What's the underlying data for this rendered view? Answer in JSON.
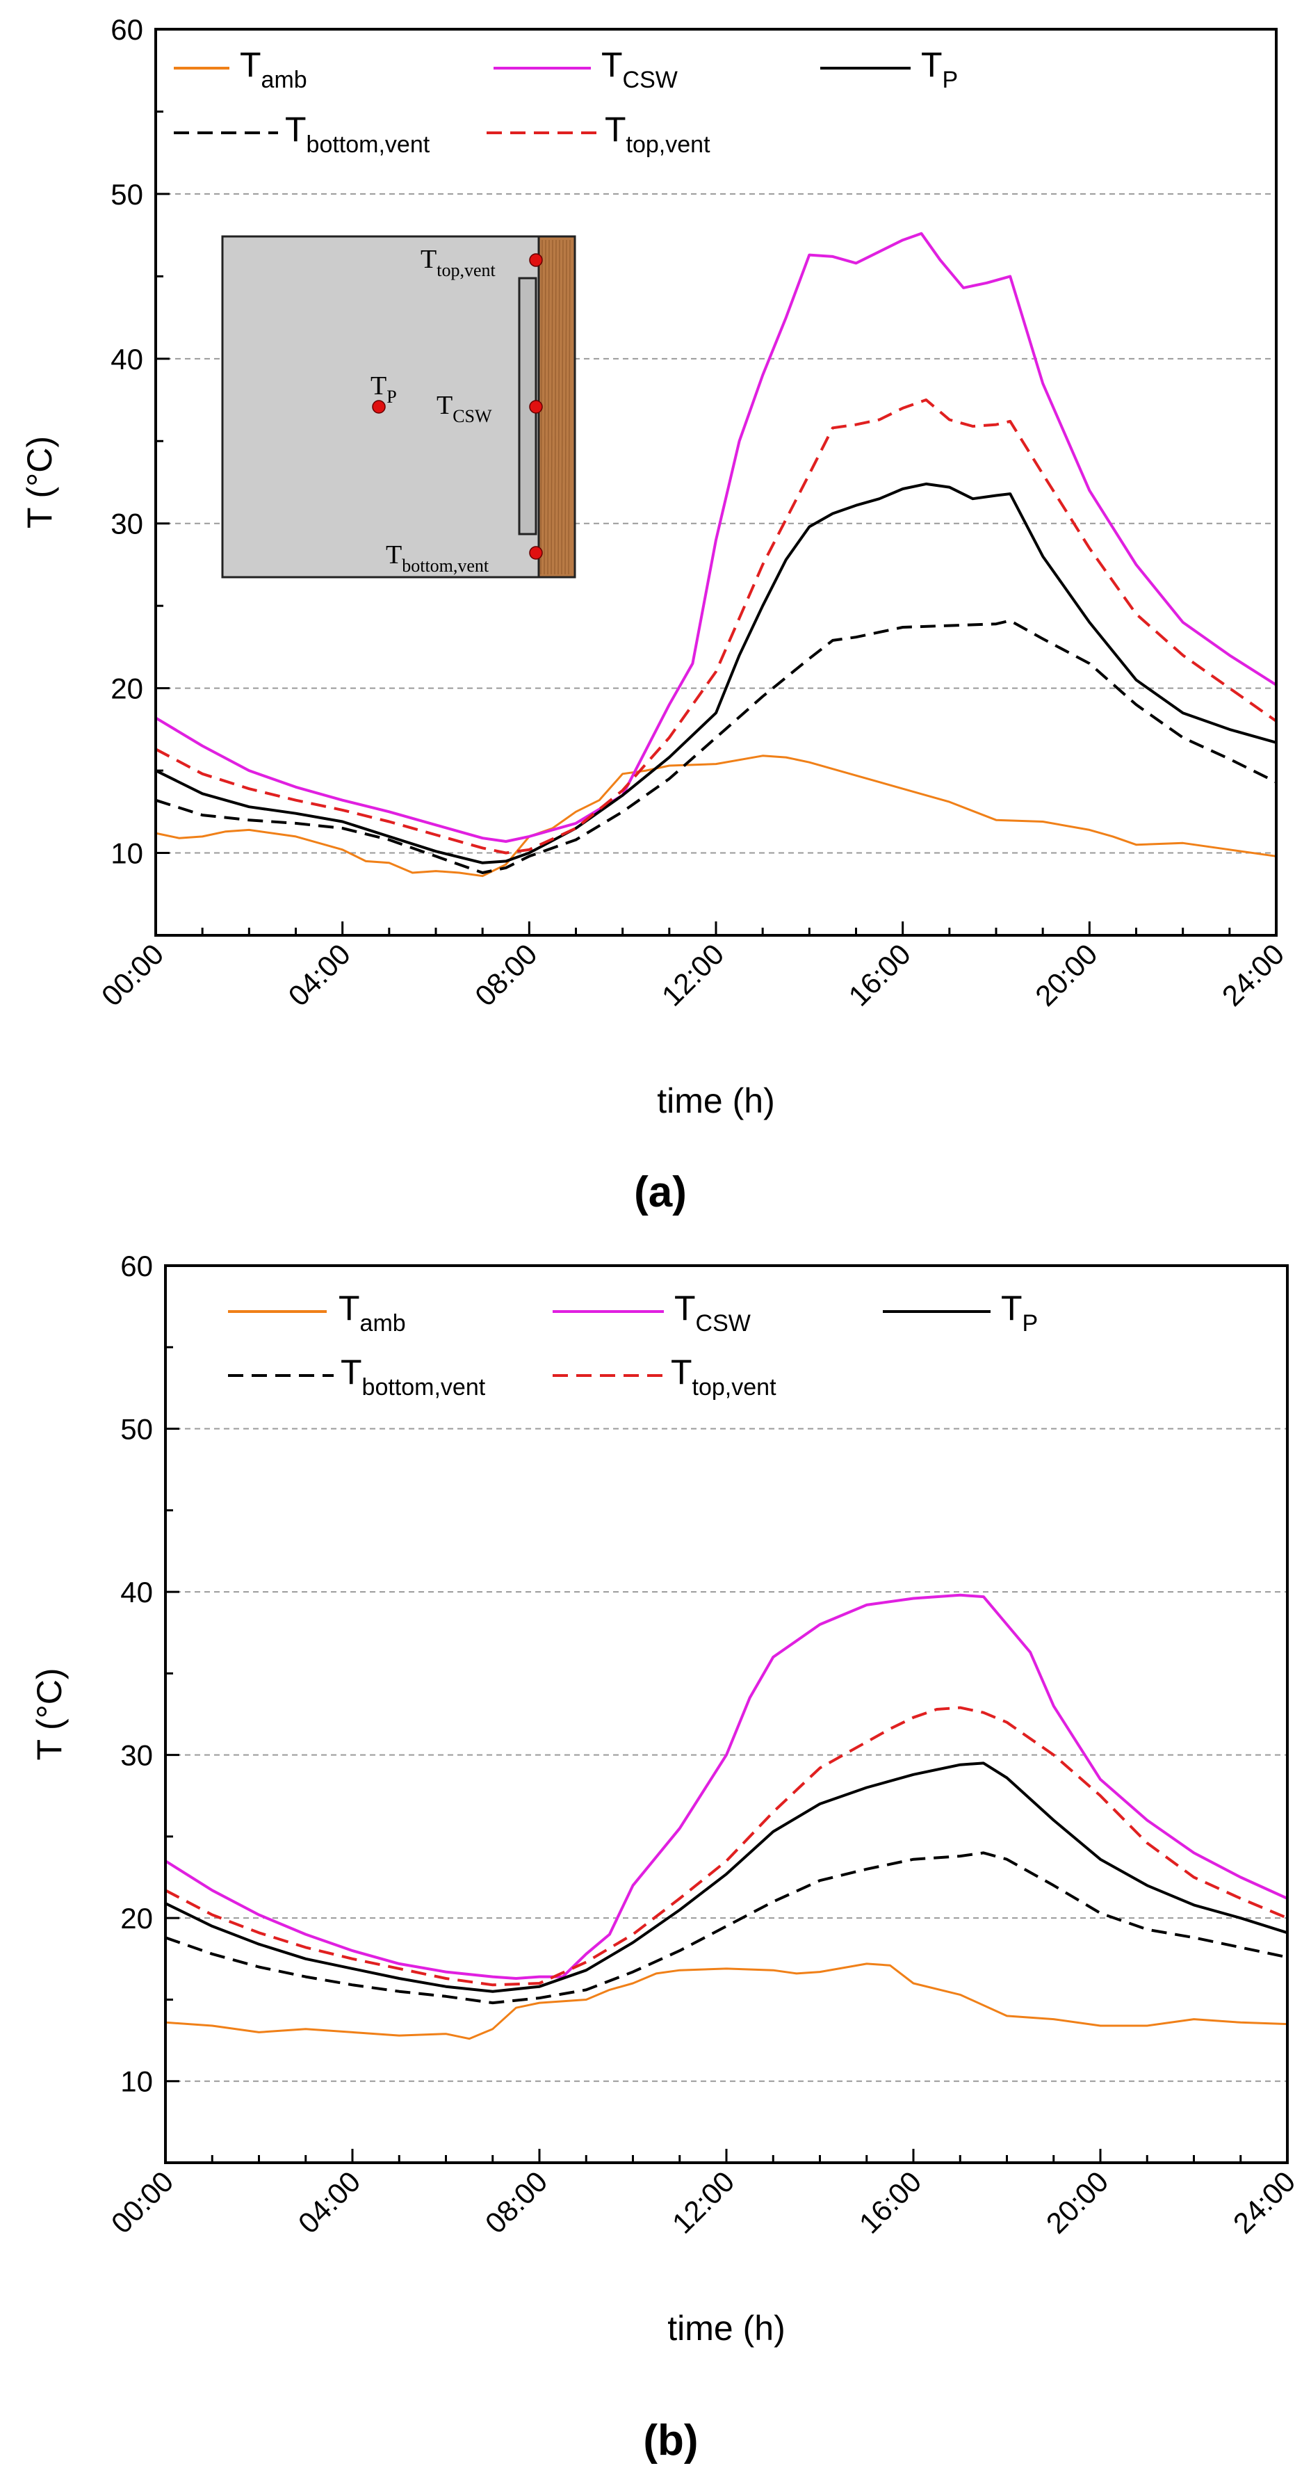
{
  "chart_data": [
    {
      "type": "line",
      "panel_label": "(a)",
      "xlabel": "time (h)",
      "ylabel": "T (°C)",
      "xlim": [
        0,
        24
      ],
      "ylim": [
        5,
        60
      ],
      "xticks": [
        "00:00",
        "04:00",
        "08:00",
        "12:00",
        "16:00",
        "20:00",
        "24:00"
      ],
      "yticks": [
        "10",
        "20",
        "30",
        "40",
        "50",
        "60"
      ],
      "grid": "horizontal dashed at 10, 20, 30, 40, 50",
      "legend": [
        {
          "series": "amb",
          "base": "T",
          "sub": "amb"
        },
        {
          "series": "csw",
          "base": "T",
          "sub": "CSW"
        },
        {
          "series": "p",
          "base": "T",
          "sub": "P"
        },
        {
          "series": "bottom",
          "base": "T",
          "sub": "bottom,vent"
        },
        {
          "series": "top",
          "base": "T",
          "sub": "top,vent"
        }
      ],
      "series": [
        {
          "id": "amb",
          "name": "T_amb",
          "color": "#F08018",
          "style": "solid",
          "x": [
            0,
            0.5,
            1,
            1.5,
            2,
            3,
            4,
            4.5,
            5,
            5.5,
            6,
            6.5,
            7,
            7.5,
            8,
            8.5,
            9,
            9.5,
            10,
            10.5,
            11,
            12,
            13,
            13.5,
            14,
            15,
            16,
            17,
            18,
            19,
            20,
            20.5,
            21,
            22,
            23,
            24
          ],
          "y": [
            11.2,
            10.9,
            11.0,
            11.3,
            11.4,
            11.0,
            10.2,
            9.5,
            9.4,
            8.8,
            8.9,
            8.8,
            8.6,
            9.3,
            11.0,
            11.5,
            12.5,
            13.2,
            14.8,
            15.0,
            15.3,
            15.4,
            15.9,
            15.8,
            15.5,
            14.7,
            13.9,
            13.1,
            12.0,
            11.9,
            11.4,
            11.0,
            10.5,
            10.6,
            10.2,
            9.8
          ]
        },
        {
          "id": "csw",
          "name": "T_CSW",
          "color": "#E020E0",
          "style": "solid",
          "x": [
            0,
            1,
            2,
            3,
            4,
            5,
            6,
            7,
            7.5,
            8,
            9,
            10,
            11,
            11.5,
            12,
            12.5,
            13,
            13.5,
            14,
            14.5,
            15,
            15.5,
            16,
            16.4,
            16.8,
            17.3,
            17.8,
            18.3,
            19,
            20,
            21,
            22,
            23,
            24
          ],
          "y": [
            18.2,
            16.5,
            15.0,
            14.0,
            13.2,
            12.5,
            11.7,
            10.9,
            10.7,
            11.0,
            11.8,
            13.5,
            19.0,
            21.5,
            29.0,
            35.0,
            39.0,
            42.5,
            46.3,
            46.2,
            45.8,
            46.5,
            47.2,
            47.6,
            46.0,
            44.3,
            44.6,
            45.0,
            38.5,
            32.0,
            27.5,
            24.0,
            22.0,
            20.2
          ]
        },
        {
          "id": "p",
          "name": "T_P",
          "color": "#000000",
          "style": "solid",
          "x": [
            0,
            1,
            2,
            3,
            4,
            5,
            6,
            7,
            7.5,
            8,
            9,
            10,
            11,
            12,
            12.5,
            13,
            13.5,
            14,
            14.5,
            15,
            15.5,
            16,
            16.5,
            17,
            17.5,
            18,
            18.3,
            19,
            20,
            21,
            22,
            23,
            24
          ],
          "y": [
            15.0,
            13.6,
            12.8,
            12.4,
            11.9,
            11.0,
            10.1,
            9.4,
            9.5,
            10.0,
            11.5,
            13.5,
            15.8,
            18.5,
            22.0,
            25.0,
            27.8,
            29.8,
            30.6,
            31.1,
            31.5,
            32.1,
            32.4,
            32.2,
            31.5,
            31.7,
            31.8,
            28.0,
            24.0,
            20.5,
            18.5,
            17.5,
            16.7
          ]
        },
        {
          "id": "bottom",
          "name": "T_bottom,vent",
          "color": "#000000",
          "style": "dashed",
          "x": [
            0,
            1,
            2,
            3,
            4,
            5,
            6,
            7,
            7.5,
            8,
            9,
            10,
            11,
            12,
            13,
            14,
            14.5,
            15,
            16,
            17,
            18,
            18.3,
            19,
            20,
            21,
            22,
            23,
            24
          ],
          "y": [
            13.2,
            12.3,
            12.0,
            11.8,
            11.5,
            10.8,
            9.8,
            8.8,
            9.1,
            9.8,
            10.8,
            12.5,
            14.5,
            17.0,
            19.5,
            21.8,
            22.9,
            23.1,
            23.7,
            23.8,
            23.9,
            24.1,
            23.0,
            21.5,
            19.0,
            17.0,
            15.7,
            14.3
          ]
        },
        {
          "id": "top",
          "name": "T_top,vent",
          "color": "#E02020",
          "style": "dashed",
          "x": [
            0,
            1,
            2,
            3,
            4,
            5,
            6,
            7,
            7.5,
            8,
            9,
            10,
            11,
            12,
            13,
            14,
            14.5,
            15,
            15.5,
            16,
            16.5,
            17,
            17.5,
            18,
            18.3,
            19,
            20,
            21,
            22,
            23,
            24
          ],
          "y": [
            16.3,
            14.8,
            13.9,
            13.2,
            12.6,
            11.9,
            11.1,
            10.3,
            10.0,
            10.2,
            11.5,
            13.8,
            17.0,
            21.0,
            27.5,
            33.0,
            35.8,
            36.0,
            36.3,
            37.0,
            37.5,
            36.3,
            35.9,
            36.0,
            36.2,
            33.0,
            28.5,
            24.5,
            22.0,
            20.0,
            18.0
          ]
        }
      ],
      "inset": {
        "labels": [
          {
            "base": "T",
            "sub": "top,vent"
          },
          {
            "base": "T",
            "sub": "CSW"
          },
          {
            "base": "T",
            "sub": "P"
          },
          {
            "base": "T",
            "sub": "bottom,vent"
          }
        ]
      }
    },
    {
      "type": "line",
      "panel_label": "(b)",
      "xlabel": "time (h)",
      "ylabel": "T (°C)",
      "xlim": [
        0,
        24
      ],
      "ylim": [
        5,
        60
      ],
      "xticks": [
        "00:00",
        "04:00",
        "08:00",
        "12:00",
        "16:00",
        "20:00",
        "24:00"
      ],
      "yticks": [
        "10",
        "20",
        "30",
        "40",
        "50",
        "60"
      ],
      "grid": "horizontal dashed at 10, 20, 30, 40, 50",
      "legend": [
        {
          "series": "amb",
          "base": "T",
          "sub": "amb"
        },
        {
          "series": "csw",
          "base": "T",
          "sub": "CSW"
        },
        {
          "series": "p",
          "base": "T",
          "sub": "P"
        },
        {
          "series": "bottom",
          "base": "T",
          "sub": "bottom,vent"
        },
        {
          "series": "top",
          "base": "T",
          "sub": "top,vent"
        }
      ],
      "series": [
        {
          "id": "amb",
          "name": "T_amb",
          "color": "#F08018",
          "style": "solid",
          "x": [
            0,
            1,
            2,
            3,
            4,
            5,
            6,
            6.5,
            7,
            7.5,
            8,
            9,
            9.5,
            10,
            10.5,
            11,
            12,
            13,
            13.5,
            14,
            15,
            15.5,
            16,
            17,
            18,
            19,
            20,
            21,
            22,
            23,
            24
          ],
          "y": [
            13.6,
            13.4,
            13.0,
            13.2,
            13.0,
            12.8,
            12.9,
            12.6,
            13.2,
            14.5,
            14.8,
            15.0,
            15.6,
            16.0,
            16.6,
            16.8,
            16.9,
            16.8,
            16.6,
            16.7,
            17.2,
            17.1,
            16.0,
            15.3,
            14.0,
            13.8,
            13.4,
            13.4,
            13.8,
            13.6,
            13.5
          ]
        },
        {
          "id": "csw",
          "name": "T_CSW",
          "color": "#E020E0",
          "style": "solid",
          "x": [
            0,
            1,
            2,
            3,
            4,
            5,
            6,
            7,
            7.5,
            8,
            8.5,
            9,
            9.5,
            10,
            11,
            12,
            12.5,
            13,
            13.5,
            14,
            15,
            16,
            17,
            17.5,
            18,
            18.5,
            19,
            20,
            21,
            22,
            23,
            24
          ],
          "y": [
            23.5,
            21.7,
            20.2,
            19.0,
            18.0,
            17.2,
            16.7,
            16.4,
            16.3,
            16.4,
            16.4,
            17.8,
            19.0,
            22.0,
            25.5,
            30.0,
            33.5,
            36.0,
            37.0,
            38.0,
            39.2,
            39.6,
            39.8,
            39.7,
            38.0,
            36.3,
            33.0,
            28.5,
            26.0,
            24.0,
            22.5,
            21.2
          ]
        },
        {
          "id": "p",
          "name": "T_P",
          "color": "#000000",
          "style": "solid",
          "x": [
            0,
            1,
            2,
            3,
            4,
            5,
            6,
            7,
            8,
            9,
            10,
            11,
            12,
            13,
            14,
            15,
            16,
            17,
            17.5,
            18,
            19,
            20,
            21,
            22,
            23,
            24
          ],
          "y": [
            20.9,
            19.5,
            18.4,
            17.5,
            16.9,
            16.3,
            15.8,
            15.5,
            15.8,
            16.8,
            18.5,
            20.5,
            22.7,
            25.3,
            27.0,
            28.0,
            28.8,
            29.4,
            29.5,
            28.6,
            26.0,
            23.6,
            22.0,
            20.8,
            20.0,
            19.1
          ]
        },
        {
          "id": "bottom",
          "name": "T_bottom,vent",
          "color": "#000000",
          "style": "dashed",
          "x": [
            0,
            1,
            2,
            3,
            4,
            5,
            6,
            7,
            8,
            9,
            10,
            11,
            12,
            13,
            14,
            15,
            16,
            17,
            17.5,
            18,
            19,
            20,
            21,
            22,
            23,
            24
          ],
          "y": [
            18.8,
            17.8,
            17.0,
            16.4,
            15.9,
            15.5,
            15.2,
            14.8,
            15.1,
            15.6,
            16.7,
            18.0,
            19.5,
            21.0,
            22.3,
            23.0,
            23.6,
            23.8,
            24.0,
            23.6,
            22.0,
            20.3,
            19.3,
            18.8,
            18.2,
            17.6
          ]
        },
        {
          "id": "top",
          "name": "T_top,vent",
          "color": "#E02020",
          "style": "dashed",
          "x": [
            0,
            1,
            2,
            3,
            4,
            5,
            6,
            7,
            8,
            9,
            10,
            11,
            12,
            13,
            14,
            15,
            15.5,
            16,
            16.5,
            17,
            17.5,
            18,
            19,
            20,
            21,
            22,
            23,
            24
          ],
          "y": [
            21.7,
            20.2,
            19.1,
            18.2,
            17.5,
            16.9,
            16.3,
            15.9,
            16.0,
            17.3,
            19.0,
            21.2,
            23.5,
            26.5,
            29.2,
            30.8,
            31.6,
            32.3,
            32.8,
            32.9,
            32.6,
            32.0,
            30.0,
            27.5,
            24.6,
            22.5,
            21.2,
            20.0
          ]
        }
      ]
    }
  ]
}
